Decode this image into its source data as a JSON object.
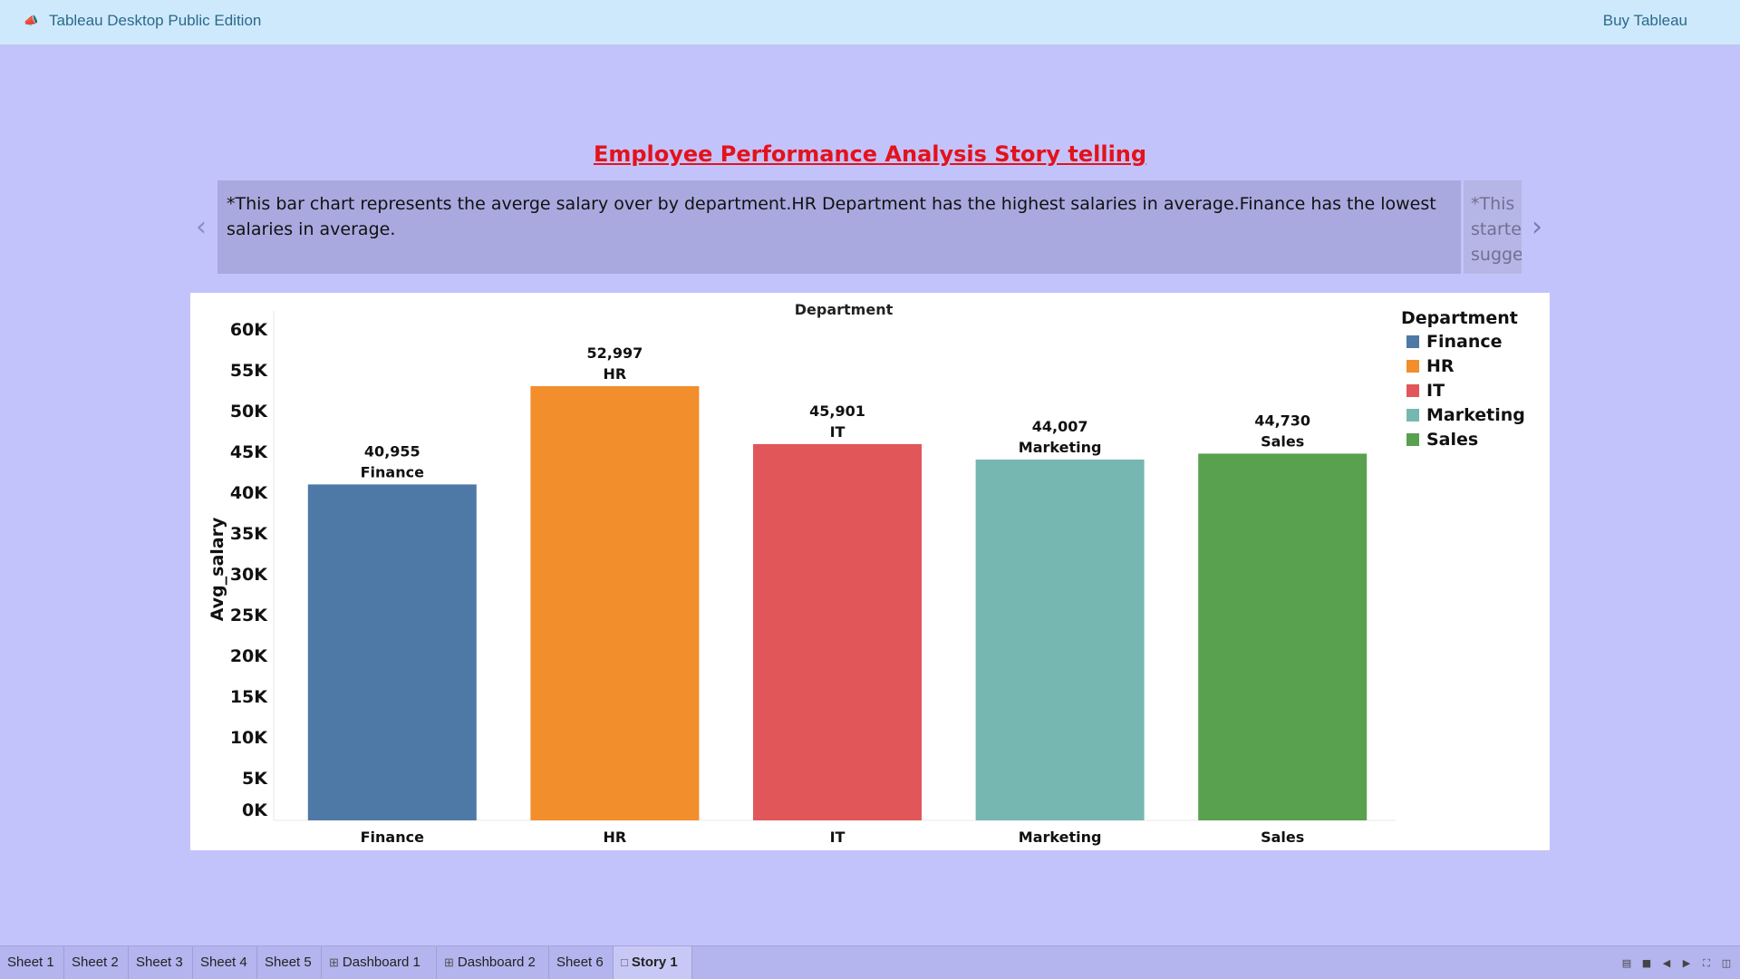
{
  "app": {
    "title": "Tableau Desktop Public Edition",
    "buy_label": "Buy Tableau",
    "icon": "megaphone-icon"
  },
  "story": {
    "title": "Employee Performance Analysis Story telling",
    "caption": "*This bar chart represents the averge salary over by department.HR Department has the highest salaries in average.Finance has the lowest salaries in average.",
    "next_caption_lines": [
      "*This",
      "starte",
      "sugge"
    ]
  },
  "legend": {
    "title": "Department",
    "items": [
      {
        "label": "Finance",
        "color": "#4e79a7"
      },
      {
        "label": "HR",
        "color": "#f28e2b"
      },
      {
        "label": "IT",
        "color": "#e15759"
      },
      {
        "label": "Marketing",
        "color": "#76b7b2"
      },
      {
        "label": "Sales",
        "color": "#59a14f"
      }
    ]
  },
  "chart_data": {
    "type": "bar",
    "title": "Department",
    "xlabel": "",
    "ylabel": "Avg_salary",
    "categories": [
      "Finance",
      "HR",
      "IT",
      "Marketing",
      "Sales"
    ],
    "values": [
      40955,
      52997,
      45901,
      44007,
      44730
    ],
    "value_labels": [
      "40,955",
      "52,997",
      "45,901",
      "44,007",
      "44,730"
    ],
    "colors": [
      "#4e79a7",
      "#f28e2b",
      "#e15759",
      "#76b7b2",
      "#59a14f"
    ],
    "yticks": [
      0,
      5000,
      10000,
      15000,
      20000,
      25000,
      30000,
      35000,
      40000,
      45000,
      50000,
      55000,
      60000
    ],
    "ytick_labels": [
      "0K",
      "5K",
      "10K",
      "15K",
      "20K",
      "25K",
      "30K",
      "35K",
      "40K",
      "45K",
      "50K",
      "55K",
      "60K"
    ],
    "ylim": [
      0,
      60000
    ],
    "legend_position": "top-right",
    "grid": false
  },
  "tabs": [
    {
      "label": "Sheet 1",
      "icon": ""
    },
    {
      "label": "Sheet 2",
      "icon": ""
    },
    {
      "label": "Sheet 3",
      "icon": ""
    },
    {
      "label": "Sheet 4",
      "icon": ""
    },
    {
      "label": "Sheet 5",
      "icon": ""
    },
    {
      "label": "Dashboard 1",
      "icon": "dashboard-icon"
    },
    {
      "label": "Dashboard 2",
      "icon": "dashboard-icon"
    },
    {
      "label": "Sheet 6",
      "icon": ""
    },
    {
      "label": "Story 1",
      "icon": "story-icon",
      "active": true
    }
  ],
  "toolbar_icons": [
    "show-sheet-sorter-icon",
    "show-filmstrip-icon",
    "previous-sheet-icon",
    "next-sheet-icon",
    "presentation-mode-icon",
    "present-icon"
  ]
}
